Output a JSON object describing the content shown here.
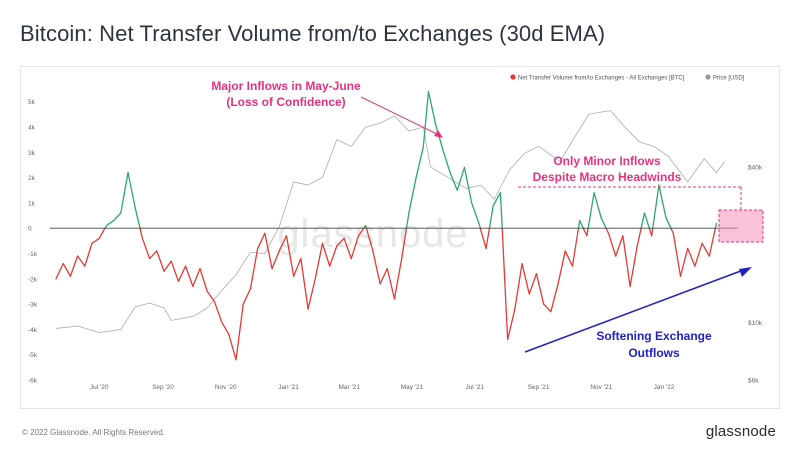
{
  "title": "Bitcoin: Net Transfer Volume from/to Exchanges (30d EMA)",
  "footer": {
    "copyright": "© 2022 Glassnode. All Rights Reserved.",
    "logo": "glassnode"
  },
  "watermark": "glassnode",
  "colors": {
    "inflow": "#2fa86a",
    "outflow": "#e53935",
    "price": "#b5b5b5",
    "annotation_pink": "#e8327f",
    "annotation_blue": "#2020c8",
    "zero_line": "#444444"
  },
  "chart_data": {
    "type": "line",
    "title": "Bitcoin: Net Transfer Volume from/to Exchanges (30d EMA)",
    "legend": {
      "placement": "top-right",
      "entries": [
        "Net Transfer Volume from/to Exchanges - All Exchanges [BTC]",
        "Price [USD]"
      ]
    },
    "x_ticks": [
      "Jul '20",
      "Sep '20",
      "Nov '20",
      "Jan '21",
      "Mar '21",
      "May '21",
      "Jul '21",
      "Sep '21",
      "Nov '21",
      "Jan '22"
    ],
    "x_range": [
      "2020-05-20",
      "2022-03-10"
    ],
    "y_left": {
      "ticks": [
        "5k",
        "4k",
        "3k",
        "2k",
        "1k",
        "0",
        "-1k",
        "-2k",
        "-3k",
        "-4k",
        "-5k",
        "-6k"
      ],
      "range": [
        -6000,
        5500
      ]
    },
    "y_right": {
      "ticks": [
        "$40k",
        "$10k",
        "$6k"
      ],
      "scale": "log"
    },
    "series": [
      {
        "name": "Net Transfer Volume from/to Exchanges - All Exchanges [BTC]",
        "values": [
          [
            "2020-05-20",
            -2000
          ],
          [
            "2020-05-27",
            -1400
          ],
          [
            "2020-06-03",
            -1900
          ],
          [
            "2020-06-10",
            -1100
          ],
          [
            "2020-06-17",
            -1500
          ],
          [
            "2020-06-24",
            -600
          ],
          [
            "2020-07-01",
            -400
          ],
          [
            "2020-07-08",
            100
          ],
          [
            "2020-07-15",
            300
          ],
          [
            "2020-07-22",
            600
          ],
          [
            "2020-07-29",
            2200
          ],
          [
            "2020-08-05",
            800
          ],
          [
            "2020-08-12",
            -400
          ],
          [
            "2020-08-19",
            -1200
          ],
          [
            "2020-08-26",
            -900
          ],
          [
            "2020-09-02",
            -1700
          ],
          [
            "2020-09-09",
            -1300
          ],
          [
            "2020-09-16",
            -2100
          ],
          [
            "2020-09-23",
            -1500
          ],
          [
            "2020-09-30",
            -2300
          ],
          [
            "2020-10-07",
            -1600
          ],
          [
            "2020-10-14",
            -2500
          ],
          [
            "2020-10-21",
            -2900
          ],
          [
            "2020-10-28",
            -3700
          ],
          [
            "2020-11-04",
            -4200
          ],
          [
            "2020-11-11",
            -5200
          ],
          [
            "2020-11-18",
            -3000
          ],
          [
            "2020-11-25",
            -2400
          ],
          [
            "2020-12-02",
            -800
          ],
          [
            "2020-12-09",
            -200
          ],
          [
            "2020-12-16",
            -1600
          ],
          [
            "2020-12-23",
            -900
          ],
          [
            "2020-12-30",
            -300
          ],
          [
            "2021-01-06",
            -1900
          ],
          [
            "2021-01-13",
            -1200
          ],
          [
            "2021-01-20",
            -3200
          ],
          [
            "2021-01-27",
            -2000
          ],
          [
            "2021-02-03",
            -600
          ],
          [
            "2021-02-10",
            -1500
          ],
          [
            "2021-02-17",
            -700
          ],
          [
            "2021-02-24",
            -400
          ],
          [
            "2021-03-03",
            -1200
          ],
          [
            "2021-03-10",
            -300
          ],
          [
            "2021-03-17",
            100
          ],
          [
            "2021-03-24",
            -900
          ],
          [
            "2021-03-31",
            -2200
          ],
          [
            "2021-04-07",
            -1600
          ],
          [
            "2021-04-14",
            -2800
          ],
          [
            "2021-04-21",
            -1200
          ],
          [
            "2021-04-28",
            600
          ],
          [
            "2021-05-05",
            2000
          ],
          [
            "2021-05-12",
            3200
          ],
          [
            "2021-05-17",
            5400
          ],
          [
            "2021-05-24",
            4100
          ],
          [
            "2021-05-31",
            3100
          ],
          [
            "2021-06-07",
            2200
          ],
          [
            "2021-06-14",
            1500
          ],
          [
            "2021-06-21",
            2400
          ],
          [
            "2021-06-28",
            1000
          ],
          [
            "2021-07-05",
            200
          ],
          [
            "2021-07-12",
            -800
          ],
          [
            "2021-07-19",
            900
          ],
          [
            "2021-07-26",
            1400
          ],
          [
            "2021-08-02",
            -4400
          ],
          [
            "2021-08-09",
            -3200
          ],
          [
            "2021-08-16",
            -1400
          ],
          [
            "2021-08-23",
            -2600
          ],
          [
            "2021-08-30",
            -1800
          ],
          [
            "2021-09-06",
            -3000
          ],
          [
            "2021-09-13",
            -3300
          ],
          [
            "2021-09-20",
            -2200
          ],
          [
            "2021-09-27",
            -900
          ],
          [
            "2021-10-04",
            -1500
          ],
          [
            "2021-10-11",
            300
          ],
          [
            "2021-10-18",
            -300
          ],
          [
            "2021-10-25",
            1400
          ],
          [
            "2021-11-01",
            400
          ],
          [
            "2021-11-08",
            -200
          ],
          [
            "2021-11-15",
            -1100
          ],
          [
            "2021-11-22",
            -300
          ],
          [
            "2021-11-29",
            -2300
          ],
          [
            "2021-12-06",
            -700
          ],
          [
            "2021-12-13",
            600
          ],
          [
            "2021-12-20",
            -300
          ],
          [
            "2021-12-27",
            1700
          ],
          [
            "2022-01-03",
            400
          ],
          [
            "2022-01-10",
            -200
          ],
          [
            "2022-01-17",
            -1900
          ],
          [
            "2022-01-24",
            -800
          ],
          [
            "2022-01-31",
            -1500
          ],
          [
            "2022-02-07",
            -600
          ],
          [
            "2022-02-14",
            -1100
          ],
          [
            "2022-02-21",
            200
          ]
        ]
      },
      {
        "name": "Price [USD]",
        "values": [
          [
            "2020-05-20",
            9500
          ],
          [
            "2020-06-10",
            9700
          ],
          [
            "2020-07-01",
            9150
          ],
          [
            "2020-07-22",
            9400
          ],
          [
            "2020-08-05",
            11500
          ],
          [
            "2020-08-19",
            11900
          ],
          [
            "2020-09-02",
            11400
          ],
          [
            "2020-09-09",
            10200
          ],
          [
            "2020-10-01",
            10600
          ],
          [
            "2020-10-14",
            11400
          ],
          [
            "2020-10-28",
            13300
          ],
          [
            "2020-11-11",
            15300
          ],
          [
            "2020-11-25",
            18700
          ],
          [
            "2020-12-09",
            18500
          ],
          [
            "2020-12-23",
            23500
          ],
          [
            "2021-01-06",
            35000
          ],
          [
            "2021-01-20",
            34000
          ],
          [
            "2021-02-03",
            36500
          ],
          [
            "2021-02-17",
            51000
          ],
          [
            "2021-03-03",
            48000
          ],
          [
            "2021-03-17",
            57000
          ],
          [
            "2021-03-31",
            59000
          ],
          [
            "2021-04-14",
            63000
          ],
          [
            "2021-04-28",
            55000
          ],
          [
            "2021-05-12",
            57000
          ],
          [
            "2021-05-19",
            40000
          ],
          [
            "2021-06-02",
            37000
          ],
          [
            "2021-06-23",
            33000
          ],
          [
            "2021-07-07",
            34000
          ],
          [
            "2021-07-20",
            30000
          ],
          [
            "2021-08-04",
            39000
          ],
          [
            "2021-08-18",
            45000
          ],
          [
            "2021-09-01",
            48000
          ],
          [
            "2021-09-22",
            42000
          ],
          [
            "2021-10-06",
            52000
          ],
          [
            "2021-10-20",
            64000
          ],
          [
            "2021-11-10",
            66000
          ],
          [
            "2021-11-24",
            57000
          ],
          [
            "2021-12-08",
            50000
          ],
          [
            "2021-12-22",
            48000
          ],
          [
            "2022-01-05",
            44000
          ],
          [
            "2022-01-24",
            35000
          ],
          [
            "2022-02-09",
            43000
          ],
          [
            "2022-02-21",
            38000
          ],
          [
            "2022-03-01",
            42000
          ]
        ]
      }
    ],
    "annotations": [
      {
        "text": [
          "Major Inflows in May-June",
          "(Loss of Confidence)"
        ],
        "color": "pink"
      },
      {
        "text": [
          "Only Minor Inflows",
          "Despite Macro Headwinds"
        ],
        "color": "pink"
      },
      {
        "text": [
          "Softening Exchange",
          "Outflows"
        ],
        "color": "blue"
      }
    ]
  }
}
